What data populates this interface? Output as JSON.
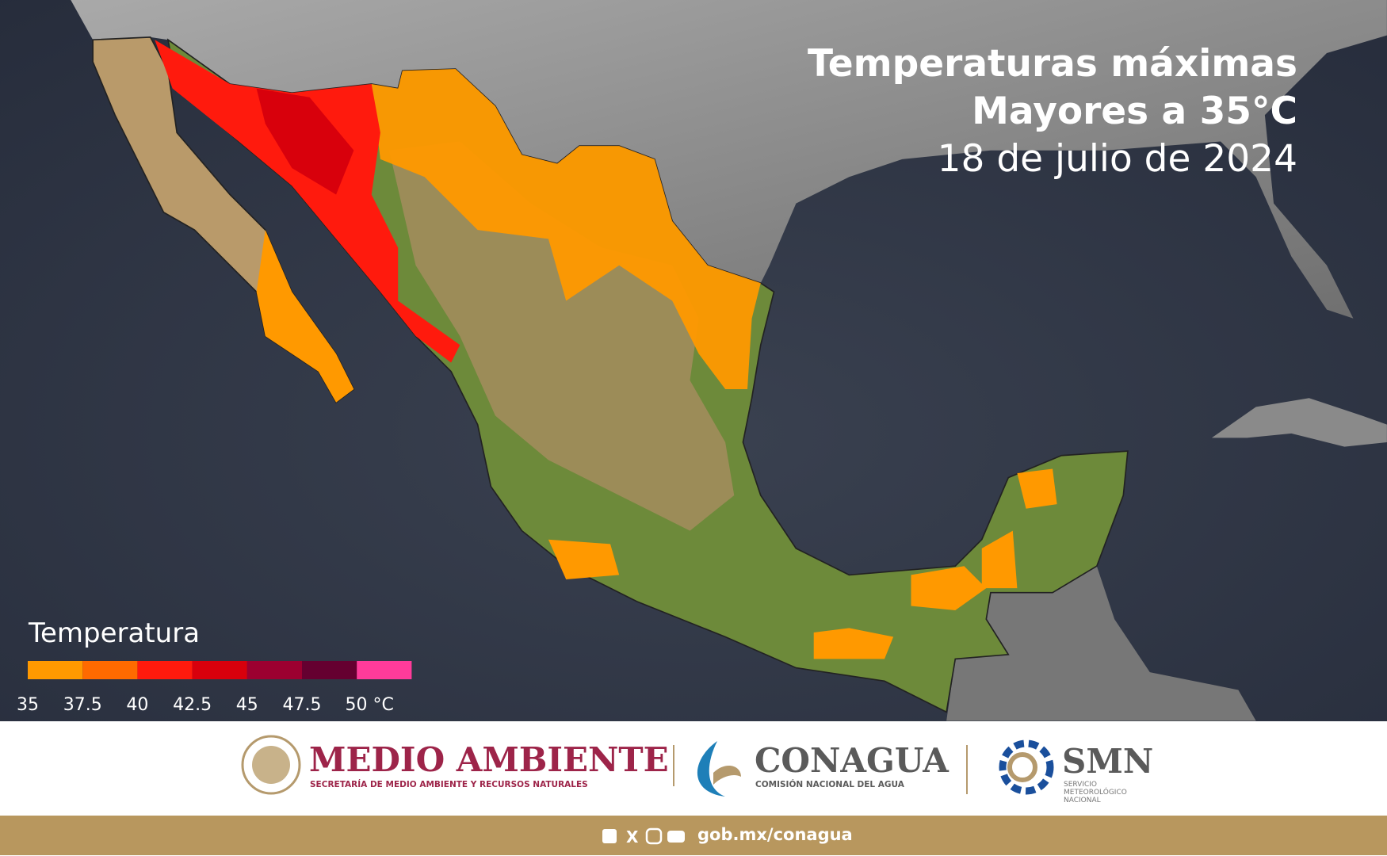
{
  "header": {
    "title": [
      "Temperaturas máximas",
      "Mayores a 35°C"
    ],
    "date": "18 de julio de 2024"
  },
  "legend": {
    "title": "Temperatura",
    "ticks": [
      35,
      37.5,
      40,
      42.5,
      45,
      47.5,
      {
        "value": 50,
        "label": "50 °C"
      }
    ],
    "colors": [
      "#ff9900",
      "#ff6a00",
      "#ff1a0d",
      "#d8000c",
      "#9c0030",
      "#650030",
      "#ff3b9a"
    ]
  },
  "footer": {
    "logos": [
      {
        "name": "MEDIO AMBIENTE",
        "subtitle": "SECRETARÍA DE MEDIO AMBIENTE Y RECURSOS NATURALES"
      },
      {
        "name": "CONAGUA",
        "subtitle": "COMISIÓN NACIONAL DEL AGUA"
      },
      {
        "name": "SMN",
        "subtitle": [
          "SERVICIO",
          "METEOROLÓGICO",
          "NACIONAL"
        ]
      }
    ],
    "link": "gob.mx/conagua"
  }
}
